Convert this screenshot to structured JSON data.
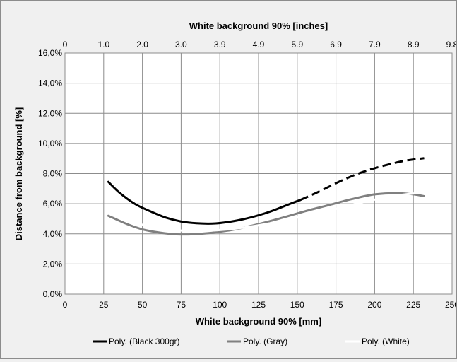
{
  "chart_data": {
    "type": "line",
    "top_axis_title": "White background 90% [inches]",
    "top_ticks": [
      "0",
      "1.0",
      "2.0",
      "3.0",
      "3.9",
      "4.9",
      "5.9",
      "6.9",
      "7.9",
      "8.9",
      "9.8"
    ],
    "xlabel": "White background 90% [mm]",
    "ylabel": "Distance from background [%]",
    "x_ticks": [
      "0",
      "25",
      "50",
      "75",
      "100",
      "125",
      "150",
      "175",
      "200",
      "225",
      "250"
    ],
    "y_ticks": [
      "0,0%",
      "2,0%",
      "4,0%",
      "6,0%",
      "8,0%",
      "10,0%",
      "12,0%",
      "14,0%",
      "16,0%"
    ],
    "xlim": [
      0,
      250
    ],
    "ylim": [
      0,
      16
    ],
    "grid": true,
    "legend_position": "bottom",
    "series": [
      {
        "name": "Poly. (Black 300gr)",
        "color": "#000000",
        "style": "solid",
        "x": [
          28,
          35,
          45,
          55,
          65,
          75,
          85,
          95,
          105,
          115,
          125,
          135,
          145,
          152
        ],
        "y": [
          7.45,
          6.75,
          6.0,
          5.5,
          5.08,
          4.82,
          4.7,
          4.68,
          4.78,
          4.97,
          5.23,
          5.57,
          5.98,
          6.25
        ]
      },
      {
        "name": "Poly. (Black 300gr)",
        "color": "#000000",
        "style": "dashed",
        "x": [
          152,
          165,
          180,
          195,
          210,
          220,
          232
        ],
        "y": [
          6.25,
          6.85,
          7.6,
          8.2,
          8.63,
          8.86,
          9.02
        ]
      },
      {
        "name": "Poly. (Gray)",
        "color": "#808080",
        "style": "solid",
        "x": [
          28,
          40,
          50,
          60,
          70,
          80,
          90,
          100,
          110,
          125,
          140,
          155,
          170,
          185,
          200,
          215,
          225,
          232
        ],
        "y": [
          5.2,
          4.65,
          4.3,
          4.1,
          3.98,
          3.96,
          4.02,
          4.14,
          4.3,
          4.65,
          5.06,
          5.5,
          5.9,
          6.3,
          6.62,
          6.7,
          6.62,
          6.5
        ]
      },
      {
        "name": "Poly. (White)",
        "color": "#ffffff",
        "style": "solid",
        "x": [
          28,
          40,
          50,
          60,
          70,
          80,
          90,
          100,
          115,
          130,
          145,
          160,
          175,
          190,
          205,
          220,
          232
        ],
        "y": [
          5.42,
          4.95,
          4.6,
          4.38,
          4.25,
          4.2,
          4.2,
          4.25,
          4.41,
          4.65,
          4.97,
          5.3,
          5.66,
          6.03,
          6.38,
          6.62,
          6.74
        ]
      }
    ],
    "legend": [
      {
        "label": "Poly. (Black 300gr)",
        "color": "#000000"
      },
      {
        "label": "Poly. (Gray)",
        "color": "#808080"
      },
      {
        "label": "Poly. (White)",
        "color": "#ffffff"
      }
    ]
  }
}
